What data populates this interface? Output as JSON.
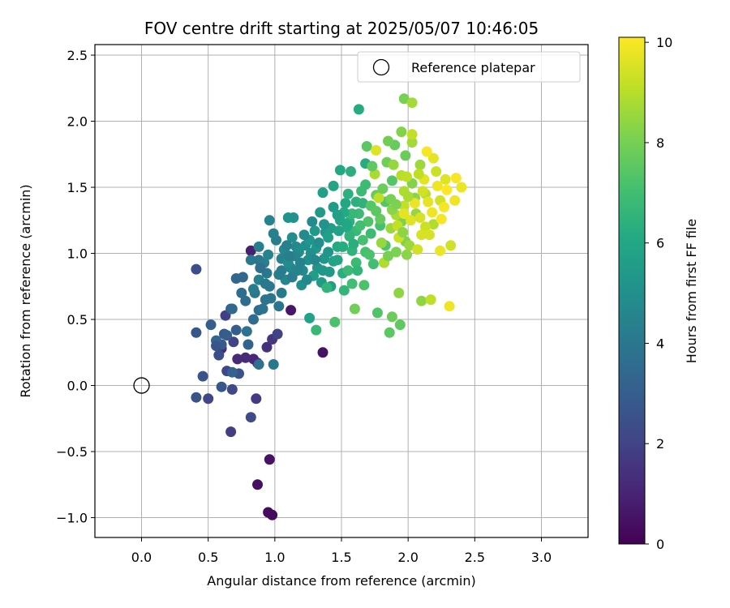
{
  "chart_data": {
    "type": "scatter",
    "title": "FOV centre drift starting at 2025/05/07 10:46:05",
    "xlabel": "Angular distance from reference (arcmin)",
    "ylabel": "Rotation from reference (arcmin)",
    "xlim": [
      -0.35,
      3.35
    ],
    "ylim": [
      -1.15,
      2.58
    ],
    "xticks": [
      0.0,
      0.5,
      1.0,
      1.5,
      2.0,
      2.5,
      3.0
    ],
    "xtick_labels": [
      "0.0",
      "0.5",
      "1.0",
      "1.5",
      "2.0",
      "2.5",
      "3.0"
    ],
    "yticks": [
      -1.0,
      -0.5,
      0.0,
      0.5,
      1.0,
      1.5,
      2.0,
      2.5
    ],
    "ytick_labels": [
      "−1.0",
      "−0.5",
      "0.0",
      "0.5",
      "1.0",
      "1.5",
      "2.0",
      "2.5"
    ],
    "grid": true,
    "legend": {
      "position": "top-right",
      "entries": [
        "Reference platepar"
      ]
    },
    "reference_point": {
      "x": 0.0,
      "y": 0.0,
      "label": "Reference platepar"
    },
    "colorbar": {
      "label": "Hours from first FF file",
      "range": [
        0,
        10.1
      ],
      "ticks": [
        0,
        2,
        4,
        6,
        8,
        10
      ],
      "tick_labels": [
        "0",
        "2",
        "4",
        "6",
        "8",
        "10"
      ],
      "colormap": "viridis"
    },
    "points": [
      [
        0.95,
        -0.96,
        0.3
      ],
      [
        0.98,
        -0.98,
        0.3
      ],
      [
        0.87,
        -0.75,
        0.4
      ],
      [
        0.96,
        -0.56,
        0.5
      ],
      [
        1.36,
        0.25,
        0.5
      ],
      [
        1.12,
        0.57,
        0.6
      ],
      [
        0.82,
        1.02,
        0.9
      ],
      [
        0.87,
        0.17,
        1.0
      ],
      [
        0.84,
        0.2,
        1.1
      ],
      [
        0.78,
        0.21,
        1.2
      ],
      [
        0.72,
        0.2,
        1.2
      ],
      [
        0.6,
        0.28,
        1.3
      ],
      [
        0.94,
        0.29,
        1.4
      ],
      [
        0.98,
        0.35,
        1.6
      ],
      [
        0.86,
        -0.1,
        1.7
      ],
      [
        0.67,
        -0.35,
        1.8
      ],
      [
        0.63,
        0.53,
        1.9
      ],
      [
        0.69,
        0.33,
        2.0
      ],
      [
        1.02,
        0.39,
        2.0
      ],
      [
        0.64,
        0.11,
        2.1
      ],
      [
        0.5,
        -0.1,
        2.1
      ],
      [
        0.68,
        -0.03,
        2.2
      ],
      [
        0.82,
        -0.24,
        2.3
      ],
      [
        0.58,
        0.23,
        2.4
      ],
      [
        0.73,
        0.09,
        2.5
      ],
      [
        0.41,
        0.88,
        2.4
      ],
      [
        0.41,
        -0.09,
        2.6
      ],
      [
        0.46,
        0.07,
        2.6
      ],
      [
        0.6,
        -0.01,
        2.7
      ],
      [
        0.41,
        0.4,
        2.7
      ],
      [
        0.6,
        0.31,
        2.8
      ],
      [
        0.62,
        0.39,
        2.8
      ],
      [
        0.67,
        0.58,
        2.9
      ],
      [
        0.52,
        0.46,
        3.0
      ],
      [
        0.71,
        0.42,
        3.0
      ],
      [
        0.68,
        0.1,
        3.1
      ],
      [
        0.8,
        0.31,
        3.2
      ],
      [
        0.56,
        0.34,
        3.3
      ],
      [
        0.71,
        0.81,
        3.3
      ],
      [
        0.76,
        0.82,
        3.4
      ],
      [
        0.84,
        0.5,
        3.5
      ],
      [
        0.78,
        0.64,
        3.6
      ],
      [
        0.88,
        0.57,
        3.6
      ],
      [
        0.88,
        0.16,
        3.7
      ],
      [
        0.79,
        0.41,
        3.8
      ],
      [
        0.93,
        0.65,
        3.8
      ],
      [
        0.85,
        0.7,
        3.9
      ],
      [
        1.03,
        0.6,
        3.9
      ],
      [
        0.94,
        0.85,
        4.0
      ],
      [
        0.88,
        0.95,
        4.0
      ],
      [
        0.99,
        0.16,
        4.1
      ],
      [
        0.96,
        0.75,
        4.1
      ],
      [
        0.82,
        0.95,
        4.1
      ],
      [
        0.84,
        0.73,
        4.2
      ],
      [
        1.05,
        0.87,
        4.2
      ],
      [
        0.92,
        0.93,
        4.3
      ],
      [
        0.88,
        1.05,
        4.3
      ],
      [
        1.01,
        1.1,
        4.3
      ],
      [
        0.99,
        1.15,
        4.4
      ],
      [
        0.88,
        0.8,
        4.4
      ],
      [
        0.95,
        0.99,
        4.5
      ],
      [
        1.05,
        0.96,
        4.5
      ],
      [
        0.96,
        1.25,
        4.5
      ],
      [
        1.08,
        0.8,
        4.6
      ],
      [
        1.12,
        0.89,
        4.6
      ],
      [
        1.07,
        1.03,
        4.7
      ],
      [
        1.16,
        1.05,
        4.7
      ],
      [
        1.1,
        0.93,
        4.8
      ],
      [
        1.21,
        0.87,
        4.8
      ],
      [
        1.18,
        1.01,
        4.9
      ],
      [
        1.13,
        1.12,
        4.9
      ],
      [
        1.23,
        1.06,
        5.0
      ],
      [
        1.25,
        0.95,
        5.0
      ],
      [
        1.2,
        0.76,
        5.0
      ],
      [
        1.1,
        1.27,
        5.1
      ],
      [
        1.14,
        1.27,
        5.1
      ],
      [
        1.26,
        1.1,
        5.2
      ],
      [
        1.32,
        0.89,
        5.2
      ],
      [
        1.31,
        1.04,
        5.3
      ],
      [
        1.37,
        0.96,
        5.3
      ],
      [
        1.3,
        1.17,
        5.4
      ],
      [
        1.38,
        1.16,
        5.4
      ],
      [
        1.34,
        1.31,
        5.5
      ],
      [
        1.35,
        0.78,
        5.5
      ],
      [
        1.29,
        0.83,
        5.6
      ],
      [
        1.42,
        0.75,
        5.6
      ],
      [
        1.36,
        1.46,
        5.7
      ],
      [
        1.4,
        1.12,
        5.7
      ],
      [
        1.44,
        0.94,
        5.8
      ],
      [
        1.26,
        0.51,
        5.8
      ],
      [
        1.49,
        1.25,
        5.9
      ],
      [
        1.44,
        1.51,
        5.9
      ],
      [
        1.49,
        1.63,
        6.0
      ],
      [
        1.53,
        1.38,
        6.0
      ],
      [
        1.47,
        1.05,
        6.1
      ],
      [
        1.55,
        1.19,
        6.1
      ],
      [
        1.63,
        2.09,
        6.2
      ],
      [
        1.68,
        1.68,
        6.2
      ],
      [
        1.57,
        1.62,
        6.3
      ],
      [
        1.51,
        0.85,
        6.3
      ],
      [
        1.56,
        1.24,
        6.4
      ],
      [
        1.61,
        1.39,
        6.4
      ],
      [
        1.58,
        1.02,
        6.5
      ],
      [
        1.66,
        1.38,
        6.5
      ],
      [
        1.52,
        0.72,
        6.6
      ],
      [
        1.39,
        0.74,
        6.6
      ],
      [
        1.31,
        0.42,
        6.7
      ],
      [
        1.61,
        1.17,
        6.7
      ],
      [
        1.55,
        0.87,
        6.8
      ],
      [
        1.63,
        1.3,
        6.8
      ],
      [
        1.72,
        1.15,
        6.9
      ],
      [
        1.68,
        1.52,
        6.9
      ],
      [
        1.58,
        0.77,
        7.0
      ],
      [
        1.74,
        0.92,
        7.0
      ],
      [
        1.79,
        1.21,
        7.1
      ],
      [
        1.68,
        1.01,
        7.1
      ],
      [
        1.45,
        0.48,
        7.2
      ],
      [
        1.67,
        0.76,
        7.2
      ],
      [
        1.77,
        0.55,
        7.3
      ],
      [
        1.83,
        1.06,
        7.3
      ],
      [
        1.83,
        1.39,
        7.4
      ],
      [
        1.88,
        1.55,
        7.4
      ],
      [
        1.69,
        1.81,
        7.5
      ],
      [
        1.86,
        0.4,
        7.5
      ],
      [
        1.94,
        0.46,
        7.6
      ],
      [
        1.82,
        0.93,
        7.6
      ],
      [
        1.9,
        1.82,
        7.7
      ],
      [
        1.76,
        1.44,
        7.7
      ],
      [
        1.88,
        0.52,
        7.8
      ],
      [
        1.98,
        1.74,
        7.8
      ],
      [
        1.84,
        1.69,
        7.9
      ],
      [
        1.6,
        0.58,
        7.9
      ],
      [
        1.97,
        2.17,
        8.0
      ],
      [
        1.87,
        1.41,
        8.0
      ],
      [
        1.95,
        1.24,
        8.1
      ],
      [
        1.91,
        1.01,
        8.1
      ],
      [
        1.98,
        1.09,
        8.2
      ],
      [
        2.03,
        1.53,
        8.2
      ],
      [
        2.05,
        1.42,
        8.3
      ],
      [
        1.99,
        0.99,
        8.3
      ],
      [
        1.93,
        0.7,
        8.4
      ],
      [
        2.1,
        0.64,
        8.4
      ],
      [
        2.06,
        1.3,
        8.5
      ],
      [
        1.8,
        1.08,
        8.5
      ],
      [
        2.09,
        1.67,
        8.6
      ],
      [
        1.87,
        1.19,
        8.6
      ],
      [
        2.03,
        1.84,
        8.7
      ],
      [
        2.03,
        2.14,
        8.7
      ],
      [
        1.75,
        1.6,
        8.8
      ],
      [
        1.91,
        1.29,
        8.8
      ],
      [
        2.19,
        1.22,
        8.9
      ],
      [
        1.82,
        0.93,
        8.9
      ],
      [
        2.13,
        1.45,
        9.0
      ],
      [
        1.95,
        1.59,
        9.0
      ],
      [
        1.78,
        1.42,
        9.1
      ],
      [
        2.17,
        0.65,
        9.1
      ],
      [
        1.97,
        1.36,
        9.2
      ],
      [
        2.03,
        1.9,
        9.2
      ],
      [
        2.13,
        1.2,
        9.3
      ],
      [
        2.21,
        1.62,
        9.3
      ],
      [
        2.24,
        1.4,
        9.4
      ],
      [
        2.32,
        1.06,
        9.4
      ],
      [
        2.16,
        1.14,
        9.5
      ],
      [
        2.09,
        1.27,
        9.5
      ],
      [
        1.76,
        1.78,
        9.6
      ],
      [
        2.28,
        1.56,
        9.6
      ],
      [
        2.19,
        1.72,
        9.7
      ],
      [
        1.97,
        1.3,
        9.7
      ],
      [
        2.24,
        1.02,
        9.8
      ],
      [
        2.4,
        1.5,
        9.8
      ],
      [
        2.31,
        0.6,
        9.9
      ],
      [
        2.35,
        1.4,
        9.9
      ],
      [
        2.25,
        1.26,
        10.0
      ],
      [
        2.36,
        1.57,
        10.0
      ],
      [
        2.29,
        1.48,
        10.1
      ],
      [
        2.14,
        1.77,
        10.0
      ],
      [
        2.05,
        1.38,
        9.8
      ],
      [
        2.1,
        1.14,
        9.5
      ],
      [
        1.92,
        1.21,
        9.2
      ],
      [
        1.97,
        1.47,
        8.9
      ],
      [
        2.01,
        1.06,
        8.6
      ],
      [
        1.88,
        1.33,
        8.3
      ],
      [
        1.85,
        0.98,
        8.0
      ],
      [
        1.79,
        1.26,
        7.7
      ],
      [
        1.72,
        1.36,
        7.4
      ],
      [
        1.66,
        1.1,
        7.1
      ],
      [
        1.61,
        0.93,
        6.8
      ],
      [
        1.56,
        1.13,
        6.5
      ],
      [
        1.51,
        1.05,
        6.2
      ],
      [
        1.47,
        0.95,
        5.9
      ],
      [
        1.42,
        1.19,
        5.6
      ],
      [
        1.36,
        0.87,
        5.3
      ],
      [
        1.27,
        1.0,
        5.0
      ],
      [
        1.22,
        1.14,
        4.8
      ],
      [
        1.15,
        0.98,
        4.6
      ],
      [
        1.09,
        1.06,
        4.4
      ],
      [
        1.03,
        0.84,
        4.2
      ],
      [
        0.93,
        0.77,
        4.0
      ],
      [
        0.91,
        0.58,
        3.8
      ],
      [
        0.75,
        0.7,
        3.6
      ],
      [
        0.68,
        0.58,
        3.4
      ],
      [
        0.64,
        0.38,
        3.0
      ],
      [
        0.56,
        0.3,
        2.6
      ],
      [
        1.99,
        1.58,
        9.1
      ],
      [
        2.07,
        1.03,
        9.4
      ],
      [
        2.12,
        1.56,
        9.7
      ],
      [
        2.18,
        1.31,
        9.9
      ],
      [
        2.02,
        1.25,
        9.6
      ],
      [
        1.93,
        1.12,
        9.3
      ],
      [
        1.89,
        1.67,
        8.5
      ],
      [
        1.95,
        1.92,
        8.2
      ],
      [
        1.85,
        1.85,
        7.9
      ],
      [
        1.73,
        1.66,
        7.6
      ],
      [
        1.7,
        1.24,
        7.3
      ],
      [
        1.64,
        1.21,
        7.0
      ],
      [
        1.58,
        1.3,
        6.7
      ],
      [
        1.55,
        1.45,
        6.4
      ],
      [
        1.52,
        1.31,
        6.1
      ],
      [
        1.48,
        1.17,
        5.8
      ],
      [
        1.44,
        1.35,
        5.5
      ],
      [
        1.4,
        1.01,
        5.2
      ],
      [
        1.33,
        1.08,
        4.9
      ],
      [
        1.3,
        0.95,
        4.7
      ],
      [
        1.19,
        0.93,
        4.5
      ],
      [
        1.13,
        0.82,
        4.3
      ],
      [
        1.05,
        0.7,
        4.1
      ],
      [
        0.97,
        0.66,
        3.9
      ],
      [
        0.89,
        0.89,
        3.7
      ],
      [
        2.22,
        1.51,
        9.9
      ],
      [
        2.27,
        1.35,
        10.0
      ],
      [
        2.15,
        1.39,
        9.7
      ],
      [
        2.11,
        1.47,
        9.4
      ],
      [
        2.08,
        1.6,
        9.1
      ],
      [
        2.0,
        1.43,
        8.8
      ],
      [
        1.96,
        1.16,
        8.4
      ],
      [
        1.91,
        1.37,
        8.1
      ],
      [
        1.81,
        1.49,
        7.8
      ],
      [
        1.76,
        1.32,
        7.5
      ],
      [
        1.71,
        0.99,
        7.2
      ],
      [
        1.65,
        1.47,
        6.9
      ],
      [
        1.62,
        0.87,
        6.6
      ],
      [
        1.59,
        1.07,
        6.3
      ],
      [
        1.54,
        1.22,
        6.0
      ],
      [
        1.47,
        1.29,
        5.7
      ],
      [
        1.41,
        0.86,
        5.4
      ],
      [
        1.37,
        1.22,
        5.1
      ],
      [
        1.28,
        1.24,
        4.9
      ],
      [
        1.24,
        0.8,
        4.7
      ],
      [
        1.17,
        0.87,
        4.5
      ],
      [
        1.11,
        0.98,
        4.3
      ]
    ]
  }
}
